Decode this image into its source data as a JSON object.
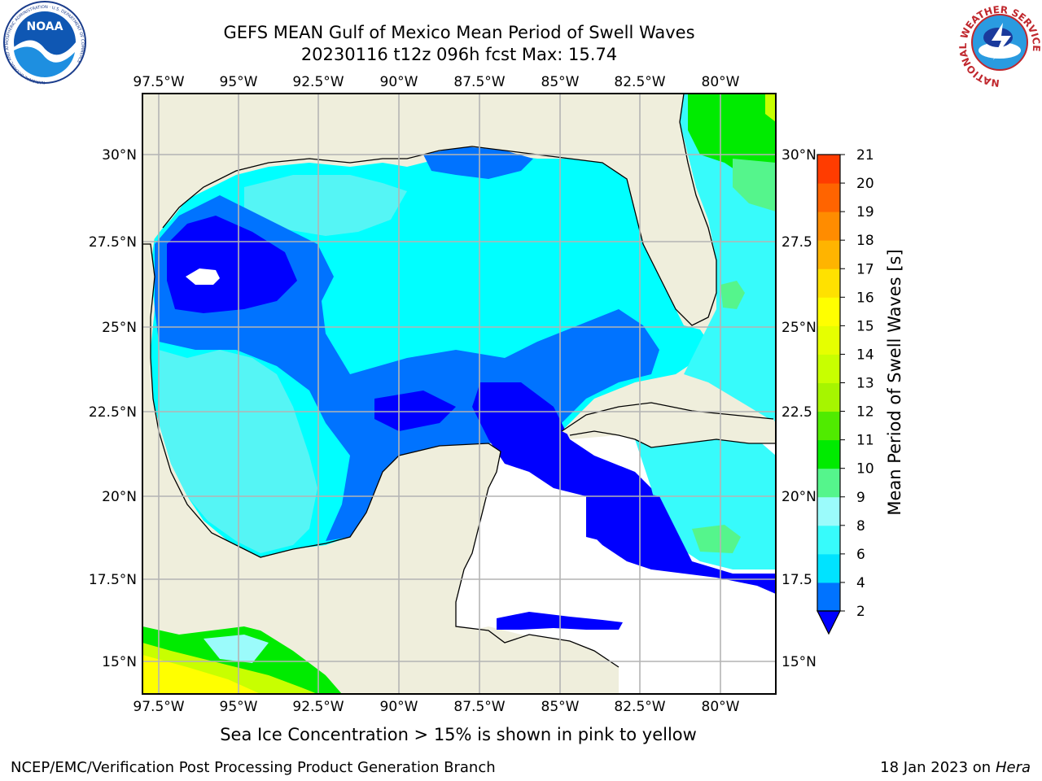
{
  "header": {
    "title_line1": "GEFS MEAN Gulf of Mexico Mean Period of Swell Waves",
    "title_line2": "20230116 t12z 096h fcst   Max: 15.74"
  },
  "logos": {
    "left": "NOAA",
    "left_ring": "NATIONAL OCEANIC AND ATMOSPHERIC ADMINISTRATION · U.S. DEPARTMENT OF COMMERCE",
    "right_ring": "NATIONAL WEATHER SERVICE"
  },
  "map": {
    "lon_labels": [
      "97.5°W",
      "95°W",
      "92.5°W",
      "90°W",
      "87.5°W",
      "85°W",
      "82.5°W",
      "80°W"
    ],
    "lat_labels_left": [
      "30°N",
      "27.5°N",
      "25°N",
      "22.5°N",
      "20°N",
      "17.5°N",
      "15°N"
    ],
    "lat_labels_right": [
      "30°N",
      "27.5",
      "25°N",
      "22.5",
      "20°N",
      "17.5",
      "15°N"
    ],
    "colors": {
      "land": "#efeedc",
      "ocean_fill": "#00ffff",
      "grid": "#b4b4b4"
    }
  },
  "colorbar": {
    "label": "Mean Period of Swell Waves [s]",
    "ticks": [
      "2",
      "4",
      "6",
      "8",
      "9",
      "10",
      "11",
      "12",
      "13",
      "14",
      "15",
      "16",
      "17",
      "18",
      "19",
      "20",
      "21"
    ],
    "colors": [
      "#0073ff",
      "#00e3ff",
      "#37fbfb",
      "#9bfbfb",
      "#55f58c",
      "#00eb00",
      "#50eb00",
      "#a6f500",
      "#c8ff00",
      "#e6ff00",
      "#ffff00",
      "#ffe100",
      "#ffb400",
      "#ff8c00",
      "#ff6400",
      "#ff3c00",
      "#ff0000"
    ],
    "extend_color": "#0000ff"
  },
  "note": "Sea Ice Concentration > 15% is shown in pink to yellow",
  "footer": {
    "left": "NCEP/EMC/Verification Post Processing Product Generation Branch",
    "date": "18 Jan 2023 on ",
    "host": "Hera"
  }
}
